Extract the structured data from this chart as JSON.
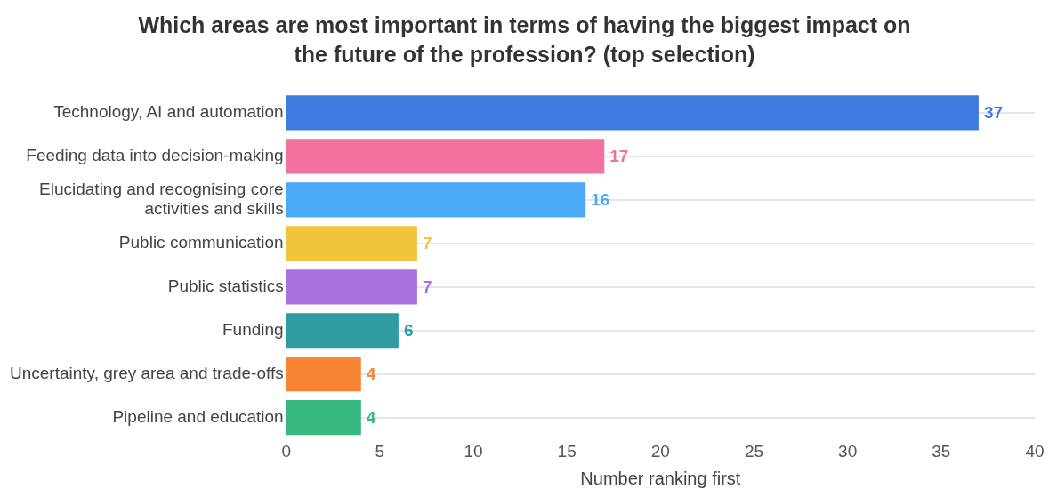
{
  "chart_data": {
    "type": "bar",
    "orientation": "horizontal",
    "title": "Which areas are most important in terms of having the biggest impact on the future of the profession? (top selection)",
    "xlabel": "Number ranking first",
    "categories": [
      "Technology, AI and automation",
      "Feeding data into decision-making",
      "Elucidating and recognising core activities and skills",
      "Public communication",
      "Public statistics",
      "Funding",
      "Uncertainty, grey area and trade-offs",
      "Pipeline and education"
    ],
    "values": [
      37,
      17,
      16,
      7,
      7,
      6,
      4,
      4
    ],
    "colors": [
      "#3d7be0",
      "#f3719f",
      "#4ba9f7",
      "#f2c43d",
      "#a970e0",
      "#2f9ba3",
      "#f98534",
      "#37b87d"
    ],
    "xlim": [
      0,
      40
    ],
    "xticks": [
      0,
      5,
      10,
      15,
      20,
      25,
      30,
      35,
      40
    ],
    "grid": "y",
    "data_labels": true,
    "legend": false
  }
}
